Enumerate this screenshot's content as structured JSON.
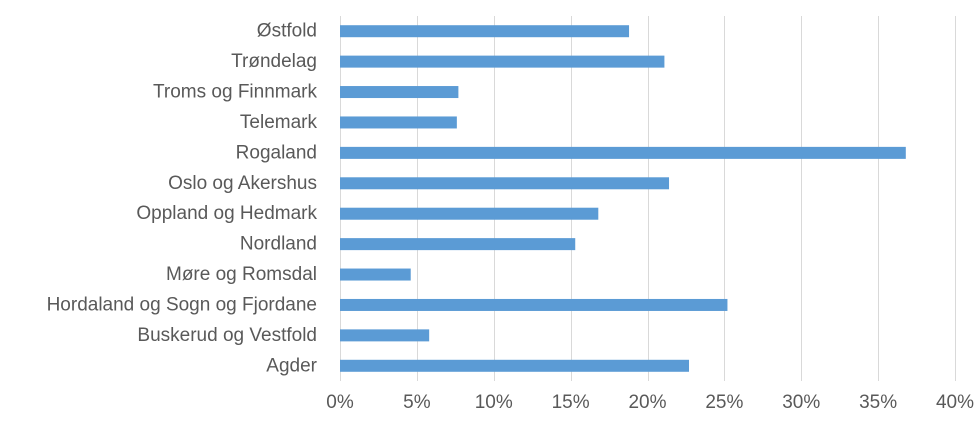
{
  "chart_data": {
    "type": "bar",
    "orientation": "horizontal",
    "title": "",
    "xlabel": "",
    "ylabel": "",
    "categories": [
      "Østfold",
      "Trøndelag",
      "Troms og Finnmark",
      "Telemark",
      "Rogaland",
      "Oslo og Akershus",
      "Oppland og Hedmark",
      "Nordland ",
      "Møre og Romsdal",
      "Hordaland og Sogn og Fjordane",
      "Buskerud og Vestfold",
      "Agder"
    ],
    "values": [
      0.188,
      0.211,
      0.077,
      0.076,
      0.368,
      0.214,
      0.168,
      0.153,
      0.046,
      0.252,
      0.058,
      0.227
    ],
    "xlim": [
      0,
      0.4
    ],
    "xticks": [
      0,
      0.05,
      0.1,
      0.15,
      0.2,
      0.25,
      0.3,
      0.35,
      0.4
    ],
    "xtick_labels": [
      "0%",
      "5%",
      "10%",
      "15%",
      "20%",
      "25%",
      "30%",
      "35%",
      "40%"
    ],
    "grid": "vertical",
    "legend": "none",
    "bar_color": "#5b9bd5"
  }
}
